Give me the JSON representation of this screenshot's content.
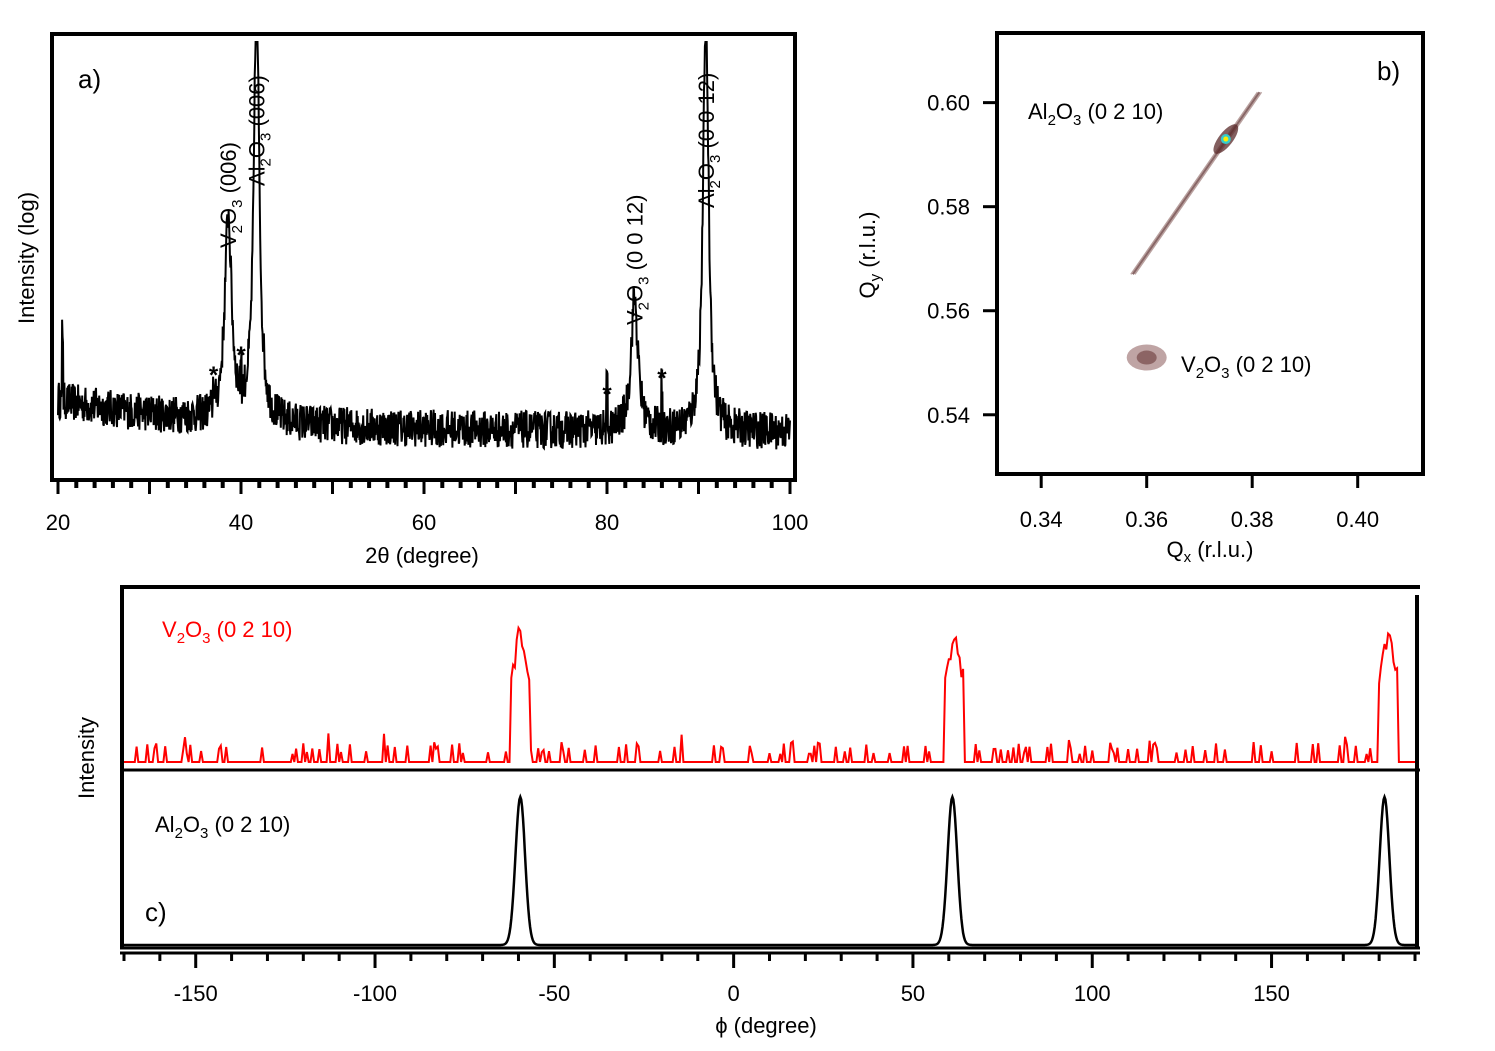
{
  "chart_data": [
    {
      "panel": "a)",
      "type": "line",
      "xlabel": "2θ (degree)",
      "ylabel": "Intensity (log)",
      "xlim": [
        20,
        100
      ],
      "yscale": "log",
      "xticks": [
        20,
        40,
        60,
        80,
        100
      ],
      "peaks": [
        {
          "x": 38.6,
          "rel": 0.47,
          "label": "V2O3 (006)",
          "label_main": "V",
          "sub1": "2",
          "mid": "O",
          "sub2": "3",
          "tail": " (006)"
        },
        {
          "x": 41.7,
          "rel": 1.0,
          "label": "Al2O3 (006)",
          "label_main": "Al",
          "sub1": "2",
          "mid": "O",
          "sub2": "3",
          "tail": " (006)"
        },
        {
          "x": 83.0,
          "rel": 0.31,
          "label": "V2O3 (0 0 12)",
          "label_main": "V",
          "sub1": "2",
          "mid": "O",
          "sub2": "3",
          "tail": " (0 0 12)"
        },
        {
          "x": 90.8,
          "rel": 1.0,
          "label": "Al2O3 (0 0 12)",
          "label_main": "Al",
          "sub1": "2",
          "mid": "O",
          "sub2": "3",
          "tail": " (0 0 12)"
        }
      ],
      "markers": [
        {
          "x": 37.0,
          "text": "*"
        },
        {
          "x": 40.0,
          "text": "*"
        },
        {
          "x": 80.0,
          "text": "*"
        },
        {
          "x": 86.0,
          "text": "*"
        }
      ],
      "color": "#000000"
    },
    {
      "panel": "b)",
      "type": "heatmap",
      "xlabel_main": "Q",
      "xlabel_sub": "x",
      "xlabel_tail": " (r.l.u.)",
      "ylabel_main": "Q",
      "ylabel_sub": "y",
      "ylabel_tail": " (r.l.u.)",
      "xlim": [
        0.332,
        0.412
      ],
      "ylim": [
        0.529,
        0.613
      ],
      "xticks": [
        "0.34",
        "0.36",
        "0.38",
        "0.40"
      ],
      "yticks": [
        "0.54",
        "0.56",
        "0.58",
        "0.60"
      ],
      "spots": [
        {
          "name": "Al2O3 (0 2 10)",
          "qx": 0.375,
          "qy": 0.593,
          "label_main": "Al",
          "sub1": "2",
          "mid": "O",
          "sub2": "3",
          "tail": " (0 2 10)"
        },
        {
          "name": "V2O3 (0 2 10)",
          "qx": 0.36,
          "qy": 0.551,
          "label_main": "V",
          "sub1": "2",
          "mid": "O",
          "sub2": "3",
          "tail": " (0 2 10)"
        }
      ],
      "streak": {
        "from": [
          0.357,
          0.567
        ],
        "to": [
          0.381,
          0.602
        ]
      }
    },
    {
      "panel": "c)",
      "type": "line",
      "xlabel": "ϕ (degree)",
      "ylabel": "Intensity",
      "xlim": [
        -170,
        190
      ],
      "xticks": [
        -150,
        -100,
        -50,
        0,
        50,
        100,
        150
      ],
      "series": [
        {
          "name": "V2O3 (0 2 10)",
          "label_main": "V",
          "sub1": "2",
          "mid": "O",
          "sub2": "3",
          "tail": " (0 2 10)",
          "color": "#ff0000",
          "peaks": [
            -59.5,
            61.5,
            182.5
          ]
        },
        {
          "name": "Al2O3 (0 2 10)",
          "label_main": "Al",
          "sub1": "2",
          "mid": "O",
          "sub2": "3",
          "tail": " (0 2 10)",
          "color": "#000000",
          "peaks": [
            -59.5,
            61.0,
            181.5
          ]
        }
      ]
    }
  ]
}
